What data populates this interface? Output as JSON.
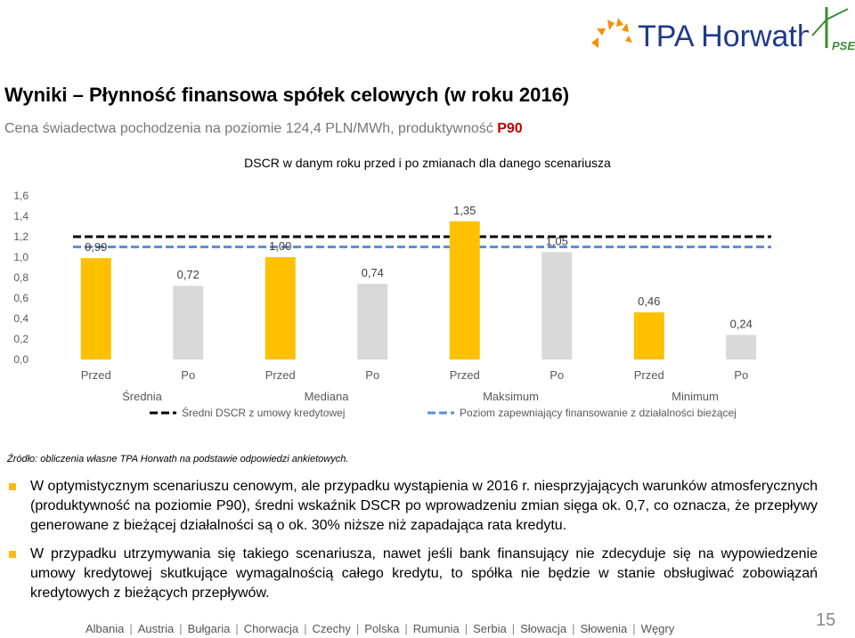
{
  "header": {
    "brand_name": "TPA Horwath",
    "partner_logo": "PSEW",
    "colors": {
      "brand_orange": "#f39200",
      "brand_blue": "#1f3a8c",
      "partner_green": "#3d8b37"
    }
  },
  "title": "Wyniki – Płynność finansowa spółek celowych (w roku 2016)",
  "subtitle": {
    "text": "Cena świadectwa pochodzenia na poziomie 124,4 PLN/MWh, produktywność ",
    "highlight": "P90"
  },
  "chart_data": {
    "type": "bar",
    "title": "DSCR w danym roku przed i po zmianach dla danego scenariusza",
    "ylim": [
      0,
      1.6
    ],
    "yticks": [
      "0,0",
      "0,2",
      "0,4",
      "0,6",
      "0,8",
      "1,0",
      "1,2",
      "1,4",
      "1,6"
    ],
    "groups": [
      "Średnia",
      "Mediana",
      "Maksimum",
      "Minimum"
    ],
    "categories": [
      "Przed",
      "Po",
      "Przed",
      "Po",
      "Przed",
      "Po",
      "Przed",
      "Po"
    ],
    "values": [
      0.99,
      0.72,
      1.0,
      0.74,
      1.35,
      1.05,
      0.46,
      0.24
    ],
    "value_labels": [
      "0,99",
      "0,72",
      "1,00",
      "0,74",
      "1,35",
      "1,05",
      "0,46",
      "0,24"
    ],
    "bar_colors": [
      "#ffc000",
      "#d9d9d9",
      "#ffc000",
      "#d9d9d9",
      "#ffc000",
      "#d9d9d9",
      "#ffc000",
      "#d9d9d9"
    ],
    "reference_lines": [
      {
        "name": "Średni DSCR z umowy kredytowej",
        "value": 1.2,
        "color": "#000000",
        "style": "dashed"
      },
      {
        "name": "Poziom zapewniający finansowanie z działalności bieżącej",
        "value": 1.1,
        "color": "#5b8fd6",
        "style": "dashed"
      }
    ],
    "grid": false,
    "legend_position": "bottom"
  },
  "source": "Źródło: obliczenia własne TPA Horwath na podstawie odpowiedzi ankietowych.",
  "bullets": [
    "W optymistycznym scenariuszu cenowym, ale przypadku wystąpienia w 2016 r. niesprzyjających warunków atmosferycznych (produktywność na poziomie P90), średni wskaźnik DSCR po wprowadzeniu zmian sięga ok. 0,7, co oznacza, że przepływy generowane z bieżącej działalności są o ok. 30% niższe niż zapadająca rata kredytu.",
    "W przypadku utrzymywania się takiego scenariusza, nawet jeśli bank finansujący nie zdecyduje się na wypowiedzenie umowy kredytowej skutkujące wymagalnością całego kredytu, to spółka nie będzie w stanie obsługiwać zobowiązań kredytowych z bieżących przepływów."
  ],
  "footer": [
    "Albania",
    "Austria",
    "Bułgaria",
    "Chorwacja",
    "Czechy",
    "Polska",
    "Rumunia",
    "Serbia",
    "Słowacja",
    "Słowenia",
    "Węgry"
  ],
  "page_number": "15"
}
